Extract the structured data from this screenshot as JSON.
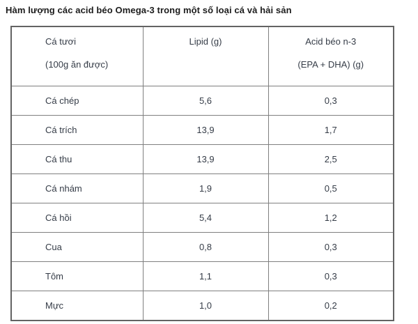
{
  "title": "Hàm lượng các acid béo Omega-3 trong một số loại cá và hải sản",
  "table": {
    "columns": [
      {
        "line1": "Cá tươi",
        "line2": "(100g ăn được)"
      },
      {
        "line1": "Lipid (g)",
        "line2": ""
      },
      {
        "line1": "Acid béo n-3",
        "line2": "(EPA + DHA) (g)"
      }
    ],
    "rows": [
      {
        "name": "Cá chép",
        "lipid": "5,6",
        "n3": "0,3"
      },
      {
        "name": "Cá trích",
        "lipid": "13,9",
        "n3": "1,7"
      },
      {
        "name": "Cá thu",
        "lipid": "13,9",
        "n3": "2,5"
      },
      {
        "name": "Cá nhám",
        "lipid": "1,9",
        "n3": "0,5"
      },
      {
        "name": "Cá hồi",
        "lipid": "5,4",
        "n3": "1,2"
      },
      {
        "name": "Cua",
        "lipid": "0,8",
        "n3": "0,3"
      },
      {
        "name": "Tôm",
        "lipid": "1,1",
        "n3": "0,3"
      },
      {
        "name": "Mực",
        "lipid": "1,0",
        "n3": "0,2"
      }
    ]
  },
  "colors": {
    "background": "#ffffff",
    "title_text": "#1c1c1c",
    "cell_text": "#353c47",
    "border_outer": "#636363",
    "border_inner": "#7f7f7f"
  }
}
